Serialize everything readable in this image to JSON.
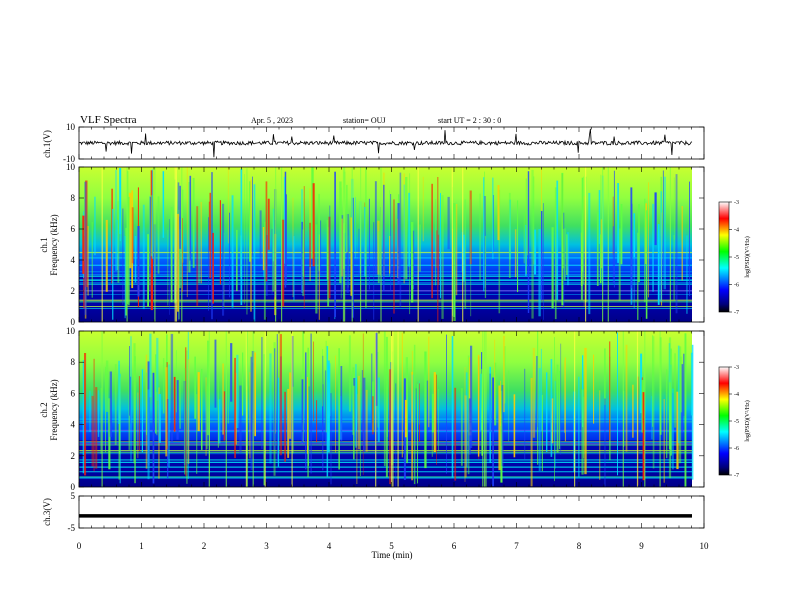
{
  "header": {
    "title": "VLF Spectra",
    "date": "Apr. 5 , 2023",
    "station": "station= OUJ",
    "start_ut": "start UT = 2 : 30 : 0"
  },
  "chart_data": [
    {
      "type": "line",
      "panel": "ch1-waveform",
      "ylabel": "ch.1(V)",
      "yticks": [
        "10",
        "-10"
      ],
      "ylim": [
        -10,
        10
      ],
      "xlim": [
        0,
        10
      ],
      "series": [
        {
          "values_note": "",
          "baseline": 0,
          "color": "#000000"
        }
      ]
    },
    {
      "type": "heatmap",
      "panel": "ch1-spectrogram",
      "ylabel": "ch.1",
      "ylabel2": "Frequency (kHz)",
      "yticks": [
        "0",
        "2",
        "4",
        "6",
        "8",
        "10"
      ],
      "ylim": [
        0,
        10
      ],
      "xlim": [
        0,
        10
      ],
      "colorbar": {
        "ticks": [
          "-3",
          "-4",
          "-5",
          "-6",
          "-7"
        ],
        "label": "log(PSD)(V²/Hz)",
        "range": [
          -7,
          -3
        ]
      }
    },
    {
      "type": "heatmap",
      "panel": "ch2-spectrogram",
      "ylabel": "ch.2",
      "ylabel2": "Frequency (kHz)",
      "yticks": [
        "0",
        "2",
        "4",
        "6",
        "8",
        "10"
      ],
      "ylim": [
        0,
        10
      ],
      "xlim": [
        0,
        10
      ],
      "colorbar": {
        "ticks": [
          "-3",
          "-4",
          "-5",
          "-6",
          "-7"
        ],
        "label": "log(PSD)(V²/Hz)",
        "range": [
          -7,
          -3
        ]
      }
    },
    {
      "type": "line",
      "panel": "ch3-waveform",
      "ylabel": "ch.3(V)",
      "yticks": [
        "5",
        "-5"
      ],
      "ylim": [
        -5,
        5
      ],
      "xlim": [
        0,
        10
      ],
      "series": [
        {
          "level": -1.2,
          "color": "#000000"
        }
      ]
    }
  ],
  "xaxis": {
    "label": "Time (min)",
    "ticks": [
      "0",
      "1",
      "2",
      "3",
      "4",
      "5",
      "6",
      "7",
      "8",
      "9",
      "10"
    ]
  },
  "colors": {
    "colormap": [
      "#000080",
      "#0000ff",
      "#00ffff",
      "#00ff00",
      "#ffff00",
      "#ff0000",
      "#ffffff"
    ]
  }
}
